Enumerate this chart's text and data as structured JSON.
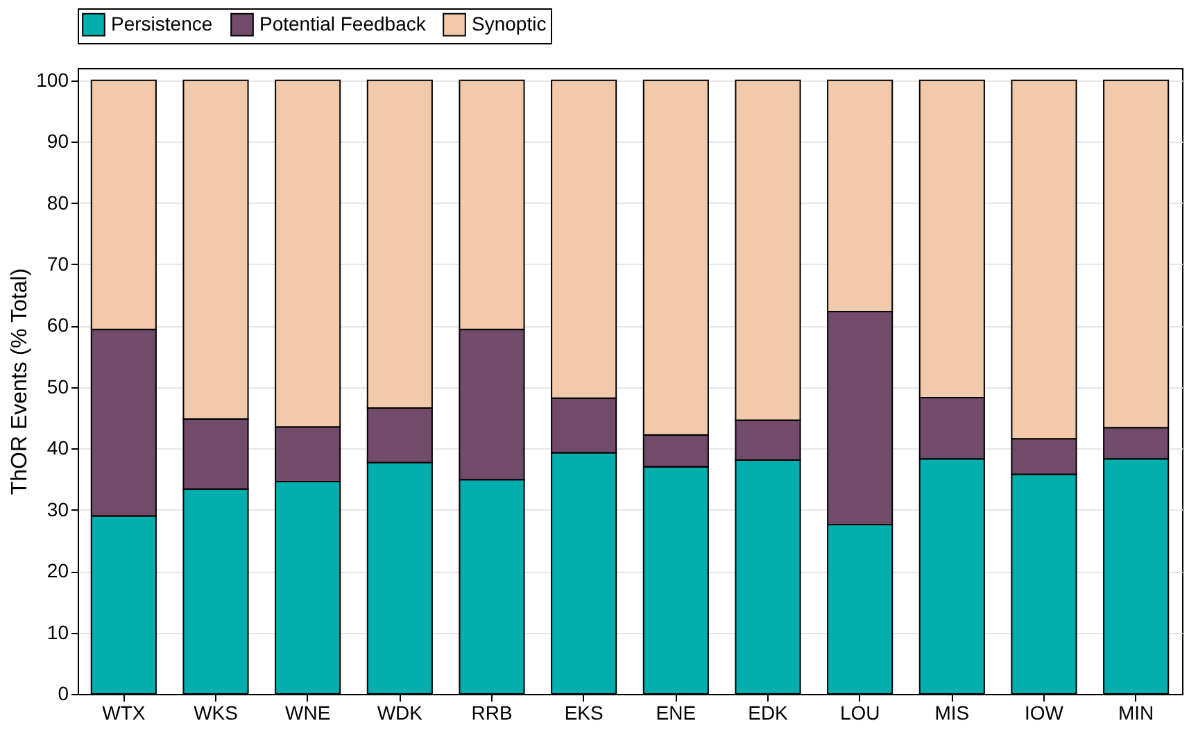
{
  "chart_data": {
    "type": "bar",
    "stacked": true,
    "ylabel": "ThOR Events (% Total)",
    "categories": [
      "WTX",
      "WKS",
      "WNE",
      "WDK",
      "RRB",
      "EKS",
      "ENE",
      "EDK",
      "LOU",
      "MIS",
      "IOW",
      "MIN"
    ],
    "series": [
      {
        "name": "Persistence",
        "color": "#00aeae",
        "values": [
          29.0,
          33.4,
          34.6,
          37.7,
          34.9,
          39.3,
          37.0,
          38.1,
          27.6,
          38.3,
          35.8,
          38.3
        ]
      },
      {
        "name": "Potential Feedback",
        "color": "#714b69",
        "values": [
          30.4,
          11.4,
          8.9,
          8.9,
          24.5,
          8.9,
          5.2,
          6.5,
          34.7,
          10.0,
          5.8,
          5.1
        ]
      },
      {
        "name": "Synoptic",
        "color": "#f1c9ab",
        "values": [
          40.6,
          55.2,
          56.5,
          53.4,
          40.6,
          51.8,
          57.8,
          55.4,
          37.7,
          51.7,
          58.4,
          56.6
        ]
      }
    ],
    "ylim": [
      0,
      102
    ],
    "yticks": [
      0,
      10,
      20,
      30,
      40,
      50,
      60,
      70,
      80,
      90,
      100
    ],
    "grid": "y",
    "legend": "top"
  }
}
